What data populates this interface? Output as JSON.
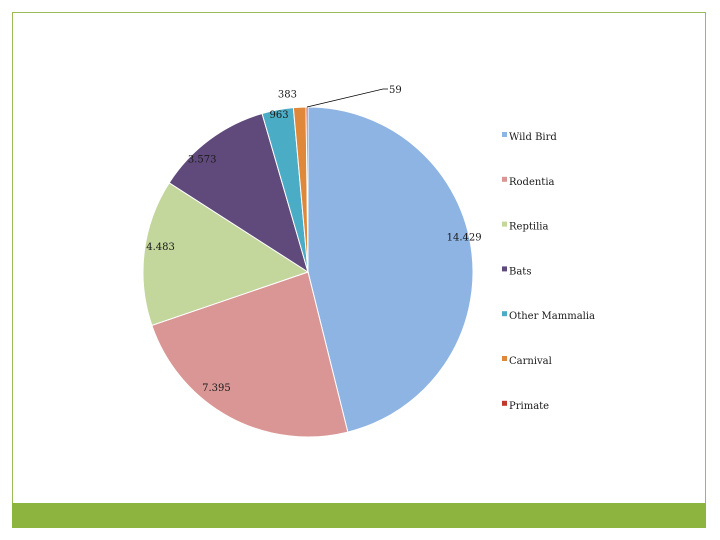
{
  "chart_data": {
    "type": "pie",
    "title": "",
    "categories": [
      "Wild Bird",
      "Rodentia",
      "Reptilia",
      "Bats",
      "Other Mammalia",
      "Carnival",
      "Primate"
    ],
    "values": [
      14429,
      7395,
      4483,
      3573,
      963,
      383,
      59
    ],
    "value_labels": [
      "14.429",
      "7.395",
      "4.483",
      "3.573",
      "963",
      "383",
      "59"
    ],
    "colors": [
      "#8eb4e3",
      "#d99694",
      "#c3d69b",
      "#604a7b",
      "#4bacc6",
      "#e0883a",
      "#c0392b"
    ],
    "legend_position": "right",
    "start_angle_deg": 0,
    "direction": "clockwise"
  },
  "colors": {
    "frame": "#9bbb59",
    "footer_bar": "#8db43f"
  }
}
